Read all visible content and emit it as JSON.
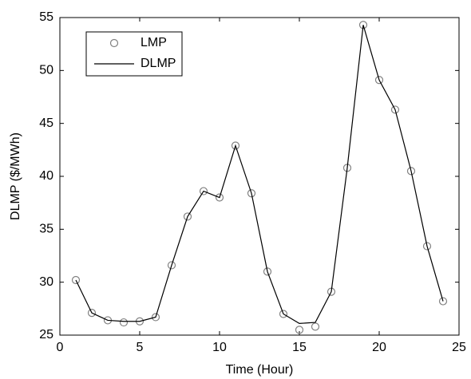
{
  "chart_data": {
    "type": "line",
    "x_label": "Time (Hour)",
    "y_label": "DLMP ($/MWh)",
    "x": [
      1,
      2,
      3,
      4,
      5,
      6,
      7,
      8,
      9,
      10,
      11,
      12,
      13,
      14,
      15,
      16,
      17,
      18,
      19,
      20,
      21,
      22,
      23,
      24
    ],
    "series": [
      {
        "name": "LMP",
        "color": "#808080",
        "marker": "circle",
        "values": [
          30.2,
          27.1,
          26.4,
          26.2,
          26.3,
          26.7,
          31.6,
          36.2,
          38.6,
          38.0,
          42.9,
          38.4,
          31.0,
          27.0,
          25.5,
          25.8,
          29.1,
          40.8,
          54.3,
          49.1,
          46.3,
          40.5,
          33.4,
          28.2
        ]
      },
      {
        "name": "DLMP",
        "color": "#000000",
        "marker": "none",
        "values": [
          30.2,
          27.1,
          26.4,
          26.3,
          26.3,
          26.7,
          31.6,
          36.2,
          38.6,
          38.0,
          42.9,
          38.4,
          31.0,
          27.0,
          26.1,
          26.2,
          29.1,
          40.8,
          54.3,
          49.1,
          46.3,
          40.5,
          33.4,
          28.2
        ]
      }
    ],
    "xlim": [
      0,
      25
    ],
    "xticks": [
      0,
      5,
      10,
      15,
      20,
      25
    ],
    "ylim": [
      25,
      55
    ],
    "yticks": [
      25,
      30,
      35,
      40,
      45,
      50,
      55
    ],
    "legend": "upper left",
    "grid": false
  }
}
